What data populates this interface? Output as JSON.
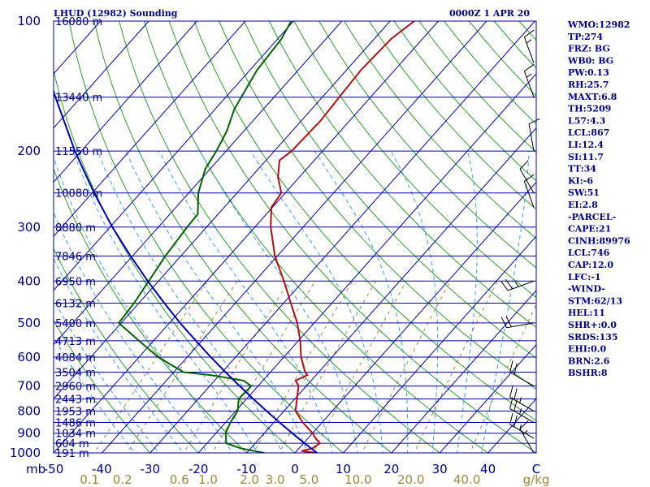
{
  "header": {
    "title": "LHUD (12982) Sounding",
    "time": "0000Z  1 APR 20"
  },
  "indices": [
    "WMO:12982",
    "TP:274",
    "FRZ: BG",
    "WB0: BG",
    "PW:0.13",
    "RH:25.7",
    "MAXT:6.8",
    "TH:5209",
    "L57:4.3",
    "LCL:867",
    "LI:12.4",
    "SI:11.7",
    "TT:34",
    "KI:-6",
    "SW:51",
    "EI:2.8",
    "-PARCEL-",
    "CAPE:21",
    "CINH:89976",
    "LCL:746",
    "CAP:12.0",
    "LFC:-1",
    "-WIND-",
    "STM:62/13",
    "HEL:11",
    "SHR+:0.0",
    "SRDS:135",
    "EHI:0.0",
    "BRN:2.6",
    "BSHR:8"
  ],
  "chart_data": {
    "type": "skew-t log-p sounding",
    "title": "LHUD (12982) Sounding",
    "x_axis": {
      "label": "C",
      "ticks": [
        "-50",
        "-40",
        "-30",
        "-20",
        "-10",
        "0",
        "10",
        "20",
        "30",
        "40"
      ],
      "range": [
        -50,
        50
      ]
    },
    "mixing_ratio_axis": {
      "unit": "g/kg",
      "ticks": [
        "0.1",
        "0.2",
        "0.6",
        "1.0",
        "2.0",
        "3.0",
        "5.0",
        "10.0",
        "20.0",
        "40.0"
      ]
    },
    "y_axis": {
      "unit": "mb",
      "scale": "log",
      "ticks": [
        "100",
        "200",
        "300",
        "400",
        "500",
        "600",
        "700",
        "800",
        "900",
        "1000"
      ],
      "range": [
        1000,
        100
      ]
    },
    "height_labels": [
      {
        "p": 100,
        "label": "16080 m"
      },
      {
        "p": 150,
        "label": "13440 m"
      },
      {
        "p": 200,
        "label": "11550 m"
      },
      {
        "p": 250,
        "label": "10080 m"
      },
      {
        "p": 300,
        "label": "8880 m"
      },
      {
        "p": 350,
        "label": "7846 m"
      },
      {
        "p": 400,
        "label": "6950 m"
      },
      {
        "p": 450,
        "label": "6132 m"
      },
      {
        "p": 500,
        "label": "5400 m"
      },
      {
        "p": 550,
        "label": "4713 m"
      },
      {
        "p": 600,
        "label": "4084 m"
      },
      {
        "p": 650,
        "label": "3504 m"
      },
      {
        "p": 700,
        "label": "2960 m"
      },
      {
        "p": 750,
        "label": "2443 m"
      },
      {
        "p": 800,
        "label": "1953 m"
      },
      {
        "p": 850,
        "label": "1486 m"
      },
      {
        "p": 900,
        "label": "1034 m"
      },
      {
        "p": 950,
        "label": "604 m"
      },
      {
        "p": 1000,
        "label": "191 m"
      }
    ],
    "series": [
      {
        "name": "temperature",
        "color": "#b01010",
        "points": [
          [
            1000,
            4.6
          ],
          [
            990,
            1.0
          ],
          [
            975,
            2.8
          ],
          [
            950,
            3.4
          ],
          [
            925,
            1.6
          ],
          [
            900,
            0.0
          ],
          [
            850,
            -4.0
          ],
          [
            800,
            -7.6
          ],
          [
            700,
            -11.6
          ],
          [
            680,
            -13.2
          ],
          [
            660,
            -11.8
          ],
          [
            650,
            -12.8
          ],
          [
            600,
            -16.4
          ],
          [
            550,
            -19.6
          ],
          [
            500,
            -23.5
          ],
          [
            450,
            -28.5
          ],
          [
            400,
            -34.0
          ],
          [
            350,
            -40.5
          ],
          [
            300,
            -46.7
          ],
          [
            270,
            -50.2
          ],
          [
            250,
            -50.8
          ],
          [
            230,
            -54.4
          ],
          [
            210,
            -57.2
          ],
          [
            200,
            -56.4
          ],
          [
            170,
            -56.0
          ],
          [
            150,
            -56.5
          ],
          [
            130,
            -57.0
          ],
          [
            110,
            -56.5
          ],
          [
            100,
            -55.0
          ]
        ]
      },
      {
        "name": "dewpoint",
        "color": "#006400",
        "points": [
          [
            1000,
            -6.4
          ],
          [
            975,
            -12.2
          ],
          [
            950,
            -16.0
          ],
          [
            925,
            -17.0
          ],
          [
            900,
            -18.0
          ],
          [
            850,
            -19.0
          ],
          [
            800,
            -19.6
          ],
          [
            750,
            -21.6
          ],
          [
            700,
            -21.4
          ],
          [
            680,
            -24.0
          ],
          [
            660,
            -32.0
          ],
          [
            650,
            -38.0
          ],
          [
            600,
            -46.0
          ],
          [
            550,
            -53.0
          ],
          [
            500,
            -60.5
          ],
          [
            450,
            -61.0
          ],
          [
            400,
            -62.0
          ],
          [
            350,
            -63.2
          ],
          [
            300,
            -64.0
          ],
          [
            280,
            -64.2
          ],
          [
            250,
            -68.0
          ],
          [
            220,
            -71.0
          ],
          [
            200,
            -72.0
          ],
          [
            180,
            -73.5
          ],
          [
            160,
            -76.0
          ],
          [
            150,
            -76.8
          ],
          [
            130,
            -78.5
          ],
          [
            110,
            -79.2
          ],
          [
            100,
            -80.5
          ]
        ]
      },
      {
        "name": "parcel",
        "color": "#0000b0",
        "points": [
          [
            1000,
            4.6
          ],
          [
            950,
            0.2
          ],
          [
            900,
            -4.2
          ],
          [
            850,
            -8.8
          ],
          [
            800,
            -13.6
          ],
          [
            750,
            -18.6
          ],
          [
            700,
            -23.8
          ],
          [
            650,
            -29.3
          ],
          [
            600,
            -35.1
          ],
          [
            550,
            -41.2
          ],
          [
            500,
            -47.8
          ],
          [
            450,
            -54.7
          ],
          [
            400,
            -62.2
          ],
          [
            350,
            -70.4
          ],
          [
            300,
            -79.5
          ],
          [
            250,
            -89.6
          ],
          [
            200,
            -101.3
          ],
          [
            150,
            -115.3
          ],
          [
            130,
            -122.0
          ],
          [
            115,
            -127.5
          ]
        ]
      }
    ],
    "wind_barbs": [
      {
        "p": 1000,
        "dir": 330,
        "speed_kt": 15
      },
      {
        "p": 925,
        "dir": 300,
        "speed_kt": 25
      },
      {
        "p": 850,
        "dir": 300,
        "speed_kt": 25
      },
      {
        "p": 800,
        "dir": 300,
        "speed_kt": 25
      },
      {
        "p": 700,
        "dir": 300,
        "speed_kt": 20
      },
      {
        "p": 500,
        "dir": 260,
        "speed_kt": 20
      },
      {
        "p": 400,
        "dir": 250,
        "speed_kt": 25
      },
      {
        "p": 270,
        "dir": 340,
        "speed_kt": 10
      },
      {
        "p": 250,
        "dir": 330,
        "speed_kt": 10
      },
      {
        "p": 200,
        "dir": 350,
        "speed_kt": 10
      },
      {
        "p": 150,
        "dir": 340,
        "speed_kt": 15
      },
      {
        "p": 125,
        "dir": 340,
        "speed_kt": 15
      }
    ]
  }
}
